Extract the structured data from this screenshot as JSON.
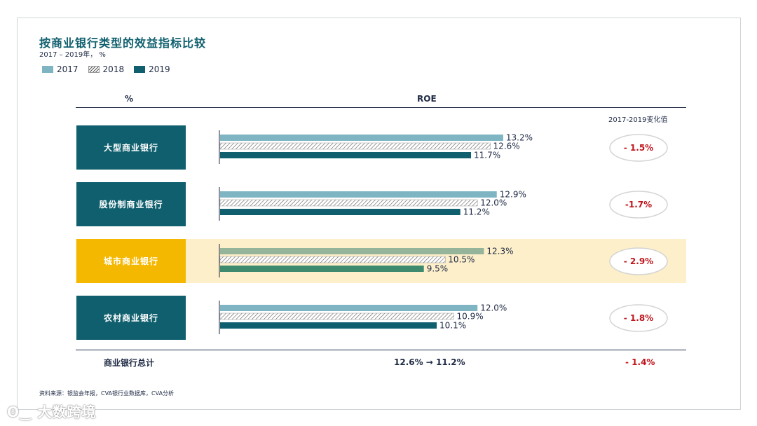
{
  "title": "按商业银行类型的效益指标比较",
  "subtitle": "2017 – 2019年， %",
  "colors": {
    "teal_dark": "#0f5f6e",
    "teal_light": "#7fb5c3",
    "gold": "#f5b800",
    "green_2019_hl": "#3d8a6e",
    "green_2017_hl": "#94b59a",
    "red": "#c0151c"
  },
  "legend": [
    {
      "label": "2017",
      "style": "solid-light"
    },
    {
      "label": "2018",
      "style": "hatched"
    },
    {
      "label": "2019",
      "style": "solid-dark"
    }
  ],
  "header": {
    "pct": "%",
    "roe": "ROE",
    "change": "2017-2019变化值"
  },
  "chart_data": {
    "type": "bar",
    "orientation": "horizontal",
    "categories": [
      "大型商业银行",
      "股份制商业银行",
      "城市商业银行",
      "农村商业银行"
    ],
    "highlighted_category": "城市商业银行",
    "series": [
      {
        "name": "2017",
        "values": [
          13.2,
          12.9,
          12.3,
          12.0
        ]
      },
      {
        "name": "2018",
        "values": [
          12.6,
          12.0,
          10.5,
          10.9
        ]
      },
      {
        "name": "2019",
        "values": [
          11.7,
          11.2,
          9.5,
          10.1
        ]
      }
    ],
    "value_labels": [
      [
        "13.2%",
        "12.6%",
        "11.7%"
      ],
      [
        "12.9%",
        "12.0%",
        "11.2%"
      ],
      [
        "12.3%",
        "10.5%",
        "9.5%"
      ],
      [
        "12.0%",
        "10.9%",
        "10.1%"
      ]
    ],
    "change_labels": [
      "- 1.5%",
      "-1.7%",
      "- 2.9%",
      "- 1.8%"
    ],
    "xlim": [
      0,
      14
    ]
  },
  "total": {
    "label": "商业银行总计",
    "roe": "12.6% → 11.2%",
    "change": "- 1.4%"
  },
  "source": "资料来源：银监会年报，CVA银行业数据库，CVA分析",
  "watermark": "大数跨境"
}
